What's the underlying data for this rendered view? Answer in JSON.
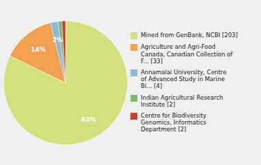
{
  "chart_data": {
    "type": "pie",
    "categories": [
      "Mined from GenBank, NCBI [203]",
      "Agriculture and Agri-Food\nCanada, Canadian Collection of\nF... [33]",
      "Annamalai University, Centre\nof Advanced Study in Marine\nBi... [4]",
      "Indian Agricultural Research\nInstitute [2]",
      "Centre for Biodiversity\nGenomics, Informatics\nDepartment [2]"
    ],
    "values": [
      83,
      14,
      2,
      1,
      1
    ],
    "value_labels": [
      "83%",
      "14%",
      "2%",
      null,
      null
    ],
    "colors": [
      "#d4df7e",
      "#f0a050",
      "#90b8d8",
      "#82b870",
      "#cc4030"
    ],
    "data_labels": true,
    "legend": "right"
  }
}
